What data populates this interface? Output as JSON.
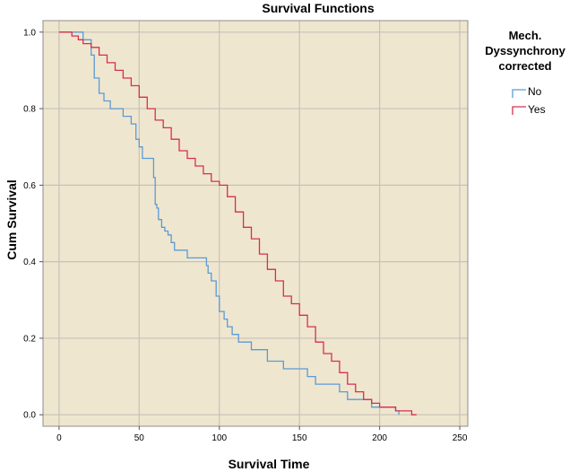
{
  "chart_data": {
    "type": "line",
    "step": true,
    "title": "Survival Functions",
    "xlabel": "Survival Time",
    "ylabel": "Cum Survival",
    "xlim": [
      -10,
      255
    ],
    "ylim": [
      -0.03,
      1.03
    ],
    "xticks": [
      "0",
      "50",
      "100",
      "150",
      "200",
      "250"
    ],
    "yticks": [
      "0.0",
      "0.2",
      "0.4",
      "0.6",
      "0.8",
      "1.0"
    ],
    "grid": true,
    "background_color": "#EFE6CF",
    "grid_color": "#C6C2B9",
    "legend": {
      "title_lines": [
        "Mech.",
        "Dyssynchrony",
        "corrected"
      ],
      "placement": "right"
    },
    "series": [
      {
        "name": "No",
        "color": "#5B9BD5",
        "x": [
          0,
          15,
          20,
          22,
          25,
          28,
          32,
          40,
          45,
          48,
          50,
          52,
          55,
          59,
          60,
          61,
          62,
          64,
          66,
          68,
          70,
          72,
          75,
          80,
          85,
          92,
          93,
          95,
          98,
          100,
          103,
          105,
          108,
          112,
          120,
          130,
          140,
          155,
          160,
          175,
          180,
          195,
          210,
          212
        ],
        "y": [
          1.0,
          0.98,
          0.94,
          0.88,
          0.84,
          0.82,
          0.8,
          0.78,
          0.76,
          0.72,
          0.7,
          0.67,
          0.67,
          0.62,
          0.55,
          0.54,
          0.51,
          0.49,
          0.48,
          0.47,
          0.45,
          0.43,
          0.43,
          0.41,
          0.41,
          0.39,
          0.37,
          0.35,
          0.31,
          0.27,
          0.25,
          0.23,
          0.21,
          0.19,
          0.17,
          0.14,
          0.12,
          0.1,
          0.08,
          0.06,
          0.04,
          0.02,
          0.01,
          0.0
        ]
      },
      {
        "name": "Yes",
        "color": "#D6304E",
        "x": [
          0,
          8,
          12,
          15,
          20,
          25,
          30,
          35,
          40,
          45,
          50,
          55,
          60,
          65,
          70,
          75,
          80,
          85,
          90,
          95,
          100,
          105,
          110,
          115,
          120,
          125,
          130,
          135,
          140,
          145,
          150,
          155,
          160,
          165,
          170,
          175,
          180,
          185,
          190,
          195,
          200,
          205,
          210,
          215,
          220,
          223
        ],
        "y": [
          1.0,
          0.99,
          0.98,
          0.97,
          0.96,
          0.94,
          0.92,
          0.9,
          0.88,
          0.86,
          0.83,
          0.8,
          0.77,
          0.75,
          0.72,
          0.69,
          0.67,
          0.65,
          0.63,
          0.61,
          0.6,
          0.57,
          0.53,
          0.49,
          0.46,
          0.42,
          0.38,
          0.35,
          0.31,
          0.29,
          0.26,
          0.23,
          0.19,
          0.16,
          0.14,
          0.11,
          0.08,
          0.06,
          0.04,
          0.03,
          0.02,
          0.02,
          0.01,
          0.01,
          0.0,
          0.0
        ]
      }
    ]
  }
}
